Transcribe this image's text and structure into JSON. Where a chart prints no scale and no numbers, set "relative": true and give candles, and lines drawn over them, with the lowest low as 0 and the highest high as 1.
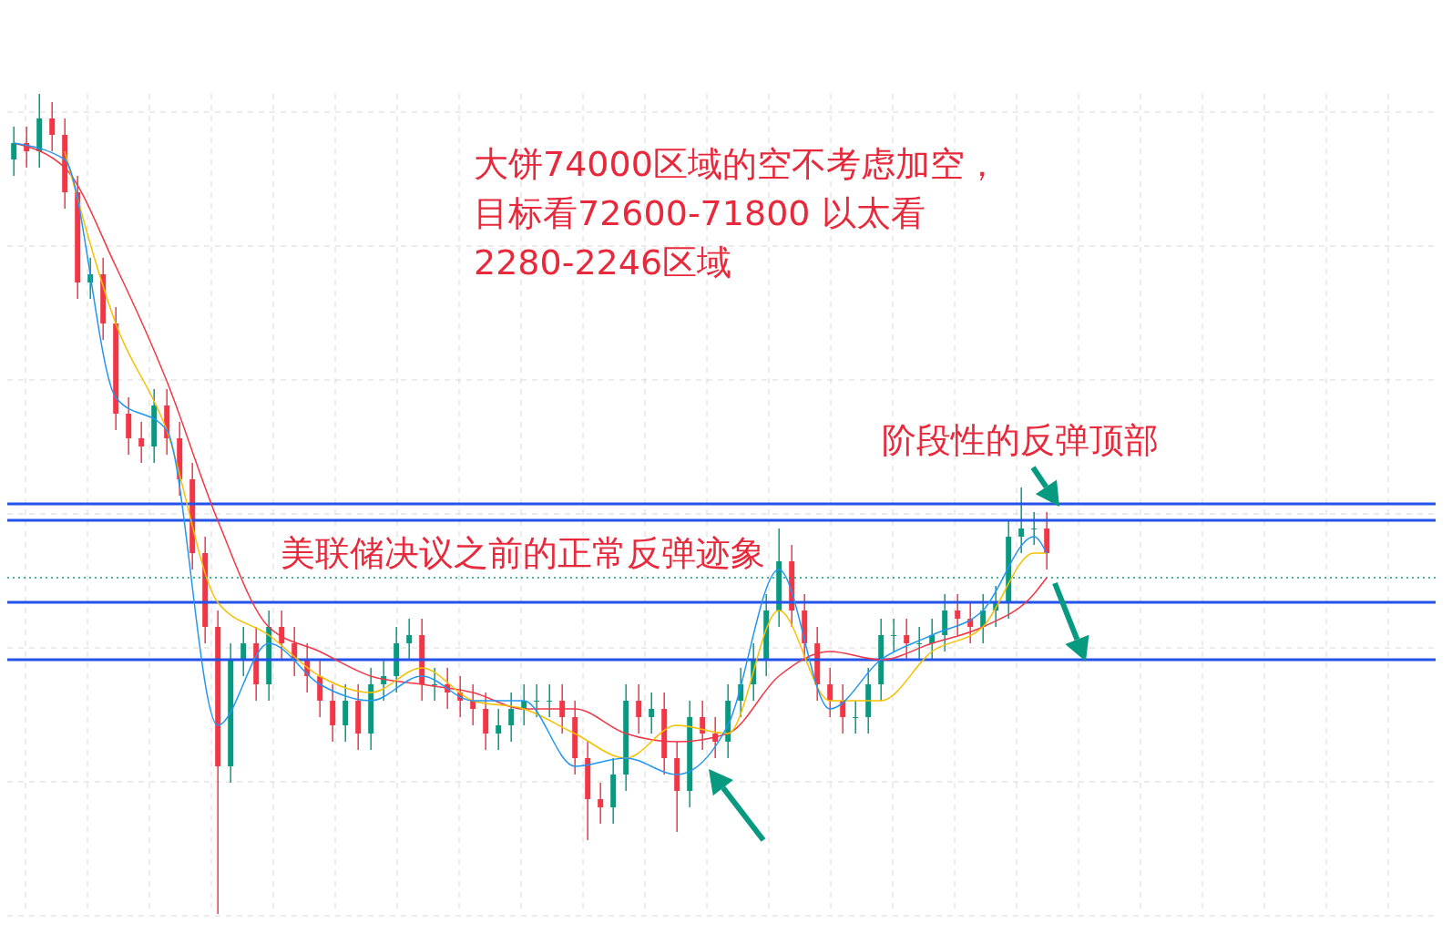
{
  "chart_data": {
    "type": "candlestick",
    "relative": true,
    "grid": true,
    "tick_labels": false,
    "annotations": [
      "大饼74000区域的空不考虑加空，",
      "目标看72600-71800 以太看",
      "2280-2246区域",
      "美联储决议之前的正常反弹迹象",
      "阶段性的反弹顶部"
    ],
    "categories": [
      null,
      null,
      null,
      null,
      null,
      null,
      null,
      null,
      null,
      null,
      null,
      null,
      null,
      null,
      null,
      null,
      null,
      null,
      null,
      null,
      null,
      null,
      null,
      null,
      null,
      null,
      null,
      null,
      null,
      null,
      null,
      null,
      null,
      null,
      null,
      null,
      null,
      null,
      null,
      null,
      null,
      null,
      null,
      null,
      null,
      null,
      null,
      null,
      null,
      null,
      null,
      null,
      null,
      null,
      null,
      null,
      null,
      null,
      null,
      null,
      null,
      null,
      null,
      null,
      null,
      null,
      null,
      null,
      null,
      null,
      null,
      null,
      null,
      null,
      null,
      null,
      null,
      null,
      null,
      null,
      null,
      null,
      null,
      null,
      null,
      null,
      null,
      null,
      null,
      null,
      null,
      null,
      null,
      null,
      null,
      null,
      null,
      null,
      null,
      null,
      null,
      null,
      null,
      null,
      null,
      null,
      null,
      null,
      null,
      null,
      null,
      null
    ],
    "ohlc": [
      [
        0.92,
        0.96,
        0.9,
        0.94
      ],
      [
        0.94,
        0.96,
        0.91,
        0.93
      ],
      [
        0.93,
        1.0,
        0.91,
        0.97
      ],
      [
        0.97,
        0.99,
        0.93,
        0.95
      ],
      [
        0.95,
        0.97,
        0.86,
        0.88
      ],
      [
        0.88,
        0.9,
        0.75,
        0.77
      ],
      [
        0.77,
        0.8,
        0.75,
        0.78
      ],
      [
        0.78,
        0.8,
        0.7,
        0.72
      ],
      [
        0.72,
        0.74,
        0.59,
        0.61
      ],
      [
        0.61,
        0.63,
        0.56,
        0.58
      ],
      [
        0.58,
        0.6,
        0.55,
        0.57
      ],
      [
        0.57,
        0.64,
        0.55,
        0.62
      ],
      [
        0.62,
        0.64,
        0.56,
        0.58
      ],
      [
        0.58,
        0.6,
        0.51,
        0.53
      ],
      [
        0.53,
        0.55,
        0.42,
        0.44
      ],
      [
        0.44,
        0.46,
        0.33,
        0.35
      ],
      [
        0.35,
        0.37,
        0,
        0.18
      ],
      [
        0.18,
        0.33,
        0.16,
        0.31
      ],
      [
        0.31,
        0.35,
        0.29,
        0.33
      ],
      [
        0.33,
        0.35,
        0.26,
        0.28
      ],
      [
        0.28,
        0.37,
        0.26,
        0.35
      ],
      [
        0.35,
        0.37,
        0.31,
        0.33
      ],
      [
        0.33,
        0.35,
        0.29,
        0.31
      ],
      [
        0.31,
        0.33,
        0.27,
        0.29
      ],
      [
        0.29,
        0.31,
        0.24,
        0.26
      ],
      [
        0.26,
        0.28,
        0.21,
        0.23
      ],
      [
        0.23,
        0.28,
        0.21,
        0.26
      ],
      [
        0.26,
        0.28,
        0.2,
        0.22
      ],
      [
        0.22,
        0.3,
        0.2,
        0.28
      ],
      [
        0.28,
        0.31,
        0.26,
        0.29
      ],
      [
        0.29,
        0.35,
        0.27,
        0.33
      ],
      [
        0.33,
        0.36,
        0.31,
        0.34
      ],
      [
        0.34,
        0.36,
        0.26,
        0.28
      ],
      [
        0.28,
        0.3,
        0.26,
        0.28
      ],
      [
        0.28,
        0.3,
        0.25,
        0.27
      ],
      [
        0.27,
        0.29,
        0.24,
        0.26
      ],
      [
        0.26,
        0.28,
        0.23,
        0.25
      ],
      [
        0.25,
        0.27,
        0.2,
        0.22
      ],
      [
        0.22,
        0.25,
        0.2,
        0.23
      ],
      [
        0.23,
        0.27,
        0.21,
        0.25
      ],
      [
        0.25,
        0.28,
        0.23,
        0.26
      ],
      [
        0.26,
        0.28,
        0.24,
        0.26
      ],
      [
        0.26,
        0.28,
        0.24,
        0.26
      ],
      [
        0.26,
        0.28,
        0.22,
        0.24
      ],
      [
        0.24,
        0.26,
        0.17,
        0.19
      ],
      [
        0.19,
        0.21,
        0.09,
        0.14
      ],
      [
        0.14,
        0.16,
        0.11,
        0.13
      ],
      [
        0.13,
        0.19,
        0.11,
        0.17
      ],
      [
        0.17,
        0.28,
        0.15,
        0.26
      ],
      [
        0.26,
        0.28,
        0.22,
        0.24
      ],
      [
        0.24,
        0.27,
        0.22,
        0.25
      ],
      [
        0.25,
        0.27,
        0.17,
        0.19
      ],
      [
        0.19,
        0.21,
        0.1,
        0.15
      ],
      [
        0.15,
        0.26,
        0.13,
        0.24
      ],
      [
        0.24,
        0.26,
        0.2,
        0.22
      ],
      [
        0.22,
        0.24,
        0.19,
        0.21
      ],
      [
        0.21,
        0.28,
        0.19,
        0.26
      ],
      [
        0.26,
        0.3,
        0.24,
        0.28
      ],
      [
        0.28,
        0.33,
        0.26,
        0.31
      ],
      [
        0.31,
        0.39,
        0.29,
        0.37
      ],
      [
        0.37,
        0.47,
        0.35,
        0.43
      ],
      [
        0.43,
        0.45,
        0.35,
        0.37
      ],
      [
        0.37,
        0.39,
        0.31,
        0.33
      ],
      [
        0.33,
        0.35,
        0.26,
        0.28
      ],
      [
        0.28,
        0.3,
        0.24,
        0.26
      ],
      [
        0.26,
        0.28,
        0.22,
        0.24
      ],
      [
        0.24,
        0.26,
        0.22,
        0.24
      ],
      [
        0.24,
        0.3,
        0.22,
        0.28
      ],
      [
        0.28,
        0.36,
        0.26,
        0.34
      ],
      [
        0.34,
        0.36,
        0.32,
        0.34
      ],
      [
        0.34,
        0.36,
        0.31,
        0.33
      ],
      [
        0.33,
        0.35,
        0.31,
        0.33
      ],
      [
        0.33,
        0.36,
        0.31,
        0.34
      ],
      [
        0.34,
        0.39,
        0.32,
        0.37
      ],
      [
        0.37,
        0.39,
        0.34,
        0.36
      ],
      [
        0.36,
        0.38,
        0.33,
        0.35
      ],
      [
        0.35,
        0.39,
        0.33,
        0.37
      ],
      [
        0.37,
        0.4,
        0.35,
        0.38
      ],
      [
        0.38,
        0.48,
        0.36,
        0.46
      ],
      [
        0.46,
        0.52,
        0.44,
        0.47
      ],
      [
        0.47,
        0.49,
        0.45,
        0.47
      ],
      [
        0.47,
        0.49,
        0.42,
        0.44
      ],
      null,
      null,
      null,
      null,
      null,
      null,
      null,
      null,
      null,
      null,
      null,
      null,
      null,
      null,
      null,
      null,
      null,
      null,
      null,
      null,
      null,
      null,
      null,
      null,
      null,
      null,
      null,
      null,
      null,
      null
    ],
    "series": [
      {
        "type": "line",
        "color": "#f23645",
        "values": [
          0.94,
          null,
          null,
          null,
          0.91,
          null,
          null,
          null,
          0.79,
          null,
          null,
          null,
          0.65,
          null,
          null,
          null,
          0.48,
          null,
          null,
          null,
          0.35,
          null,
          null,
          null,
          0.32,
          null,
          null,
          null,
          0.29,
          null,
          null,
          null,
          0.28,
          null,
          null,
          null,
          0.27,
          null,
          null,
          null,
          0.25,
          null,
          null,
          null,
          0.25,
          null,
          null,
          null,
          0.22,
          null,
          null,
          null,
          0.21,
          null,
          null,
          null,
          0.22,
          null,
          null,
          null,
          0.29,
          null,
          null,
          null,
          0.32,
          null,
          null,
          null,
          0.31,
          null,
          null,
          null,
          0.33,
          null,
          null,
          null,
          0.35,
          null,
          null,
          null,
          0.39,
          0.41,
          null,
          null,
          null,
          null,
          null,
          null,
          null,
          null,
          null,
          null,
          null,
          null,
          null,
          null,
          null,
          null,
          null,
          null,
          null,
          null,
          null,
          null,
          null,
          null,
          null,
          null,
          null,
          null,
          null,
          null
        ]
      },
      {
        "type": "line",
        "color": "#f5c000",
        "values": [
          null,
          null,
          null,
          null,
          0.93,
          null,
          null,
          null,
          0.72,
          null,
          null,
          null,
          0.59,
          null,
          null,
          null,
          0.38,
          null,
          null,
          null,
          0.34,
          null,
          null,
          null,
          0.29,
          null,
          null,
          null,
          0.27,
          null,
          null,
          null,
          0.3,
          null,
          null,
          null,
          0.26,
          null,
          null,
          null,
          0.25,
          null,
          null,
          null,
          0.22,
          null,
          null,
          null,
          0.19,
          null,
          null,
          null,
          0.23,
          null,
          null,
          null,
          0.22,
          null,
          null,
          null,
          0.37,
          null,
          null,
          null,
          0.26,
          null,
          null,
          null,
          0.26,
          null,
          null,
          null,
          0.32,
          null,
          null,
          null,
          0.35,
          null,
          null,
          null,
          0.44,
          0.44,
          null,
          null,
          null,
          null,
          null,
          null,
          null,
          null,
          null,
          null,
          null,
          null,
          null,
          null,
          null,
          null,
          null,
          null,
          null,
          null,
          null,
          null,
          null,
          null,
          null,
          null,
          null,
          null,
          null,
          null
        ]
      },
      {
        "type": "line",
        "color": "#2196f3",
        "values": [
          0.94,
          null,
          null,
          null,
          0.92,
          null,
          null,
          null,
          0.63,
          null,
          null,
          null,
          0.59,
          null,
          null,
          null,
          0.23,
          null,
          null,
          null,
          0.33,
          null,
          null,
          null,
          0.28,
          null,
          null,
          null,
          0.26,
          null,
          null,
          null,
          0.29,
          null,
          null,
          null,
          0.26,
          null,
          null,
          null,
          0.26,
          null,
          null,
          null,
          0.18,
          null,
          null,
          null,
          0.19,
          null,
          null,
          null,
          0.17,
          null,
          null,
          null,
          0.23,
          null,
          null,
          null,
          0.42,
          null,
          null,
          null,
          0.25,
          null,
          null,
          null,
          0.31,
          null,
          null,
          null,
          0.34,
          null,
          null,
          null,
          0.37,
          null,
          null,
          null,
          0.46,
          0.44,
          null,
          null,
          null,
          null,
          null,
          null,
          null,
          null,
          null,
          null,
          null,
          null,
          null,
          null,
          null,
          null,
          null,
          null,
          null,
          null,
          null,
          null,
          null,
          null,
          null,
          null,
          null,
          null,
          null,
          null
        ]
      }
    ],
    "ref_lines": [
      {
        "axis": "y",
        "value": 0.5,
        "color": "#2353e8",
        "line_style": "solid"
      },
      {
        "axis": "y",
        "value": 0.48,
        "color": "#2353e8",
        "line_style": "solid"
      },
      {
        "axis": "y",
        "value": 0.41,
        "color": "#089981",
        "line_style": "dotted"
      },
      {
        "axis": "y",
        "value": 0.38,
        "color": "#2353e8",
        "line_style": "solid"
      },
      {
        "axis": "y",
        "value": 0.31,
        "color": "#2353e8",
        "line_style": "solid"
      }
    ]
  }
}
